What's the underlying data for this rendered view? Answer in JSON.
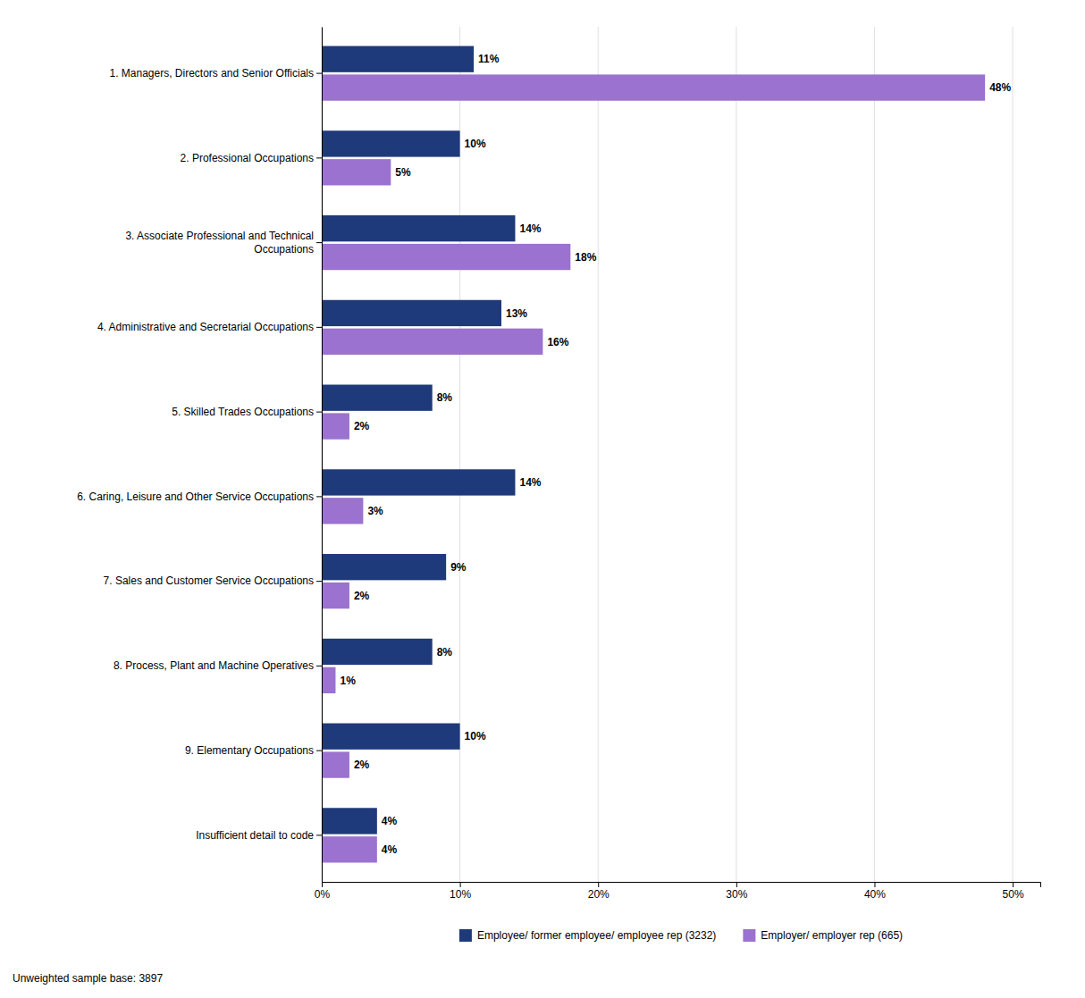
{
  "chart_data": {
    "type": "bar",
    "orientation": "horizontal",
    "categories": [
      "1. Managers, Directors and Senior Officials",
      "2. Professional Occupations",
      "3. Associate Professional and Technical\nOccupations",
      "4. Administrative and Secretarial Occupations",
      "5. Skilled Trades Occupations",
      "6. Caring, Leisure and Other Service Occupations",
      "7. Sales and Customer Service Occupations",
      "8. Process, Plant and Machine Operatives",
      "9. Elementary Occupations",
      "Insufficient detail to code"
    ],
    "series": [
      {
        "name": "Employee/ former employee/ employee rep (3232)",
        "color": "#1f3a7a",
        "values": [
          11,
          10,
          14,
          13,
          8,
          14,
          9,
          8,
          10,
          4
        ],
        "value_labels": [
          "11%",
          "10%",
          "14%",
          "13%",
          "8%",
          "14%",
          "9%",
          "8%",
          "10%",
          "4%"
        ]
      },
      {
        "name": "Employer/ employer rep (665)",
        "color": "#9b72cf",
        "values": [
          48,
          5,
          18,
          16,
          2,
          3,
          2,
          1,
          2,
          4
        ],
        "value_labels": [
          "48%",
          "5%",
          "18%",
          "16%",
          "2%",
          "3%",
          "2%",
          "1%",
          "2%",
          "4%"
        ]
      }
    ],
    "xlim": [
      0,
      52
    ],
    "xticks": [
      {
        "value": 0,
        "label": "0%"
      },
      {
        "value": 10,
        "label": "10%"
      },
      {
        "value": 20,
        "label": "20%"
      },
      {
        "value": 30,
        "label": "30%"
      },
      {
        "value": 40,
        "label": "40%"
      },
      {
        "value": 50,
        "label": "50%"
      }
    ],
    "grid": true,
    "data_labels": true,
    "legend": "bottom",
    "annotations": [
      "Unweighted sample base: 3897"
    ]
  }
}
